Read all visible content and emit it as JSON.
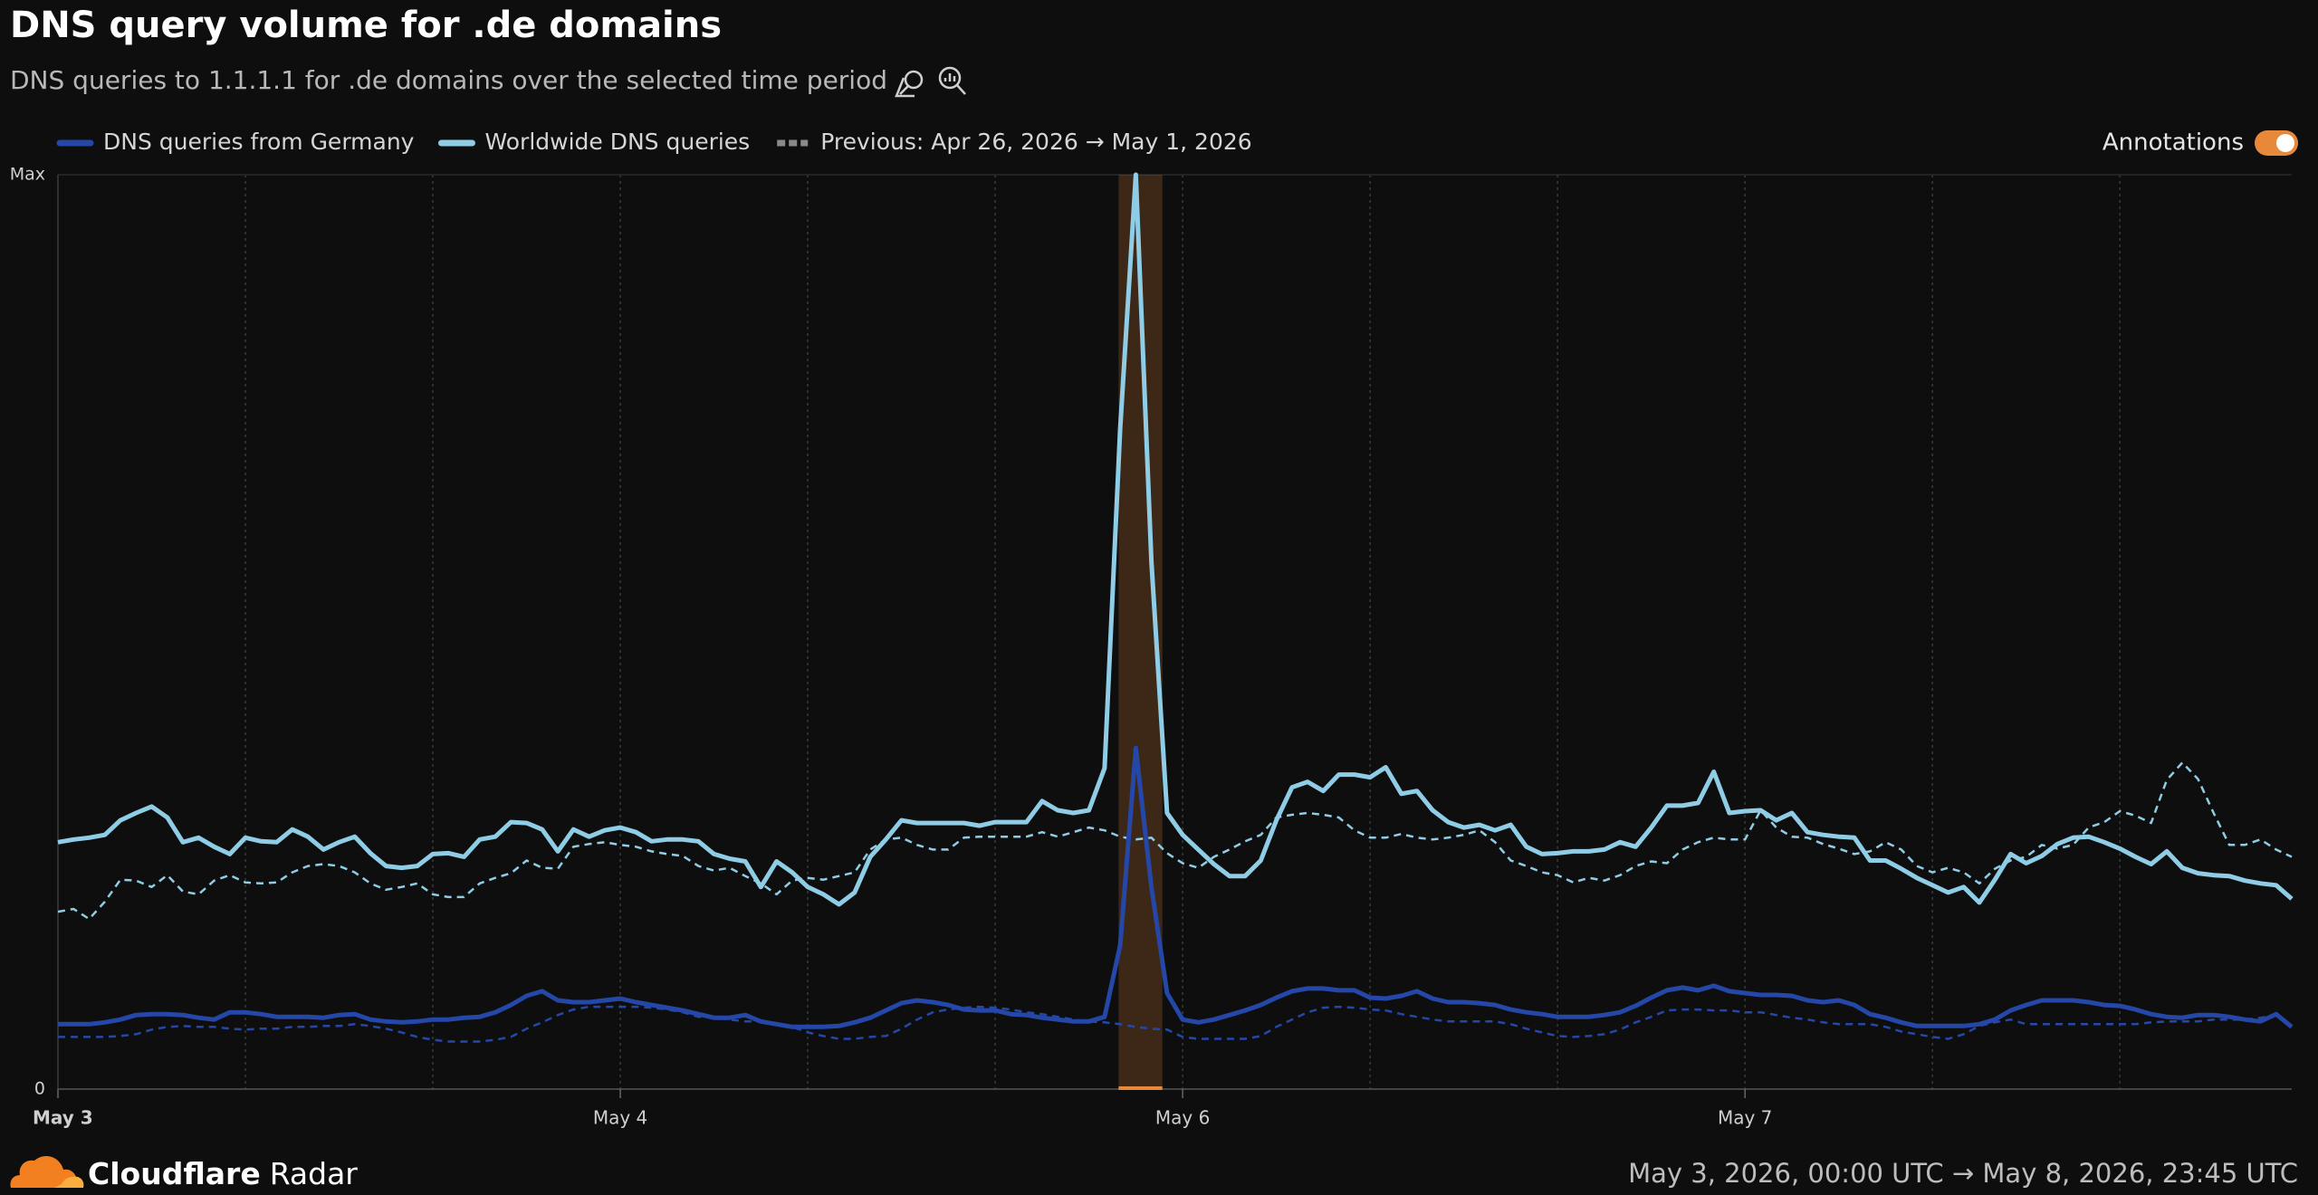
{
  "chart_data": {
    "type": "line",
    "title": "DNS query volume for .de domains",
    "subtitle": "DNS queries to 1.1.1.1 for .de domains over the selected time period",
    "previous_label": "Previous: Apr 26, 2026 → May 1, 2026",
    "toggle_label": "Annotations",
    "toggle_on": true,
    "xlim": [
      0,
      143
    ],
    "xticks": [
      {
        "value": 0,
        "label": "May 3"
      },
      {
        "value": 36,
        "label": "May 4"
      },
      {
        "value": 72,
        "label": "May 6"
      },
      {
        "value": 108,
        "label": "May 7"
      }
    ],
    "x_grid": [
      12,
      24,
      36,
      48,
      60,
      72,
      84,
      96,
      108,
      120,
      132
    ],
    "ylim": [
      0,
      1
    ],
    "yticks": [
      0,
      {
        "value": 1,
        "label": "Max"
      }
    ],
    "annotations": [
      {
        "xlim": [
          67.9,
          70.7
        ],
        "color": "#e8883a"
      }
    ],
    "series": [
      {
        "name": "DNS queries from Germany",
        "color": "#2447a8",
        "values": [
          0.071,
          0.071,
          0.071,
          0.073,
          0.076,
          0.081,
          0.082,
          0.082,
          0.081,
          0.078,
          0.076,
          0.084,
          0.084,
          0.082,
          0.079,
          0.079,
          0.079,
          0.078,
          0.081,
          0.082,
          0.076,
          0.074,
          0.073,
          0.074,
          0.076,
          0.076,
          0.078,
          0.079,
          0.084,
          0.092,
          0.102,
          0.107,
          0.097,
          0.095,
          0.095,
          0.097,
          0.099,
          0.095,
          0.092,
          0.089,
          0.086,
          0.082,
          0.078,
          0.078,
          0.081,
          0.074,
          0.071,
          0.068,
          0.068,
          0.068,
          0.069,
          0.073,
          0.078,
          0.086,
          0.094,
          0.097,
          0.095,
          0.092,
          0.087,
          0.086,
          0.086,
          0.082,
          0.081,
          0.078,
          0.076,
          0.074,
          0.074,
          0.079,
          0.157,
          0.373,
          0.221,
          0.105,
          0.076,
          0.073,
          0.076,
          0.081,
          0.086,
          0.092,
          0.1,
          0.107,
          0.11,
          0.11,
          0.108,
          0.108,
          0.1,
          0.099,
          0.102,
          0.107,
          0.099,
          0.095,
          0.095,
          0.094,
          0.092,
          0.087,
          0.084,
          0.082,
          0.079,
          0.079,
          0.079,
          0.081,
          0.084,
          0.091,
          0.1,
          0.108,
          0.111,
          0.108,
          0.113,
          0.107,
          0.105,
          0.103,
          0.103,
          0.102,
          0.097,
          0.095,
          0.097,
          0.092,
          0.082,
          0.078,
          0.073,
          0.069,
          0.069,
          0.069,
          0.069,
          0.071,
          0.076,
          0.086,
          0.092,
          0.097,
          0.097,
          0.097,
          0.095,
          0.092,
          0.091,
          0.087,
          0.082,
          0.079,
          0.078,
          0.081,
          0.081,
          0.079,
          0.076,
          0.074,
          0.082,
          0.068
        ],
        "previous_values": [
          0.057,
          0.057,
          0.057,
          0.057,
          0.058,
          0.06,
          0.065,
          0.068,
          0.069,
          0.068,
          0.068,
          0.066,
          0.065,
          0.066,
          0.066,
          0.068,
          0.068,
          0.069,
          0.069,
          0.071,
          0.069,
          0.066,
          0.062,
          0.057,
          0.054,
          0.052,
          0.052,
          0.052,
          0.054,
          0.057,
          0.066,
          0.073,
          0.081,
          0.087,
          0.09,
          0.09,
          0.09,
          0.09,
          0.089,
          0.087,
          0.084,
          0.079,
          0.078,
          0.076,
          0.074,
          0.074,
          0.071,
          0.068,
          0.062,
          0.058,
          0.055,
          0.055,
          0.057,
          0.058,
          0.066,
          0.076,
          0.084,
          0.087,
          0.089,
          0.09,
          0.089,
          0.087,
          0.084,
          0.082,
          0.079,
          0.076,
          0.074,
          0.073,
          0.071,
          0.068,
          0.066,
          0.065,
          0.057,
          0.055,
          0.055,
          0.055,
          0.055,
          0.058,
          0.068,
          0.076,
          0.084,
          0.089,
          0.09,
          0.089,
          0.087,
          0.086,
          0.082,
          0.079,
          0.076,
          0.074,
          0.074,
          0.074,
          0.074,
          0.071,
          0.066,
          0.062,
          0.058,
          0.057,
          0.058,
          0.06,
          0.065,
          0.073,
          0.079,
          0.086,
          0.087,
          0.087,
          0.086,
          0.086,
          0.084,
          0.084,
          0.081,
          0.078,
          0.076,
          0.073,
          0.071,
          0.071,
          0.071,
          0.068,
          0.063,
          0.06,
          0.057,
          0.055,
          0.06,
          0.069,
          0.073,
          0.076,
          0.071,
          0.071,
          0.071,
          0.071,
          0.071,
          0.071,
          0.071,
          0.071,
          0.073,
          0.074,
          0.074,
          0.074,
          0.076,
          0.076,
          0.076,
          0.078,
          0.081,
          0.068
        ]
      },
      {
        "name": "Worldwide DNS queries",
        "color": "#8fcde6",
        "values": [
          0.27,
          0.273,
          0.275,
          0.278,
          0.294,
          0.302,
          0.309,
          0.297,
          0.27,
          0.275,
          0.265,
          0.257,
          0.275,
          0.271,
          0.27,
          0.284,
          0.276,
          0.262,
          0.27,
          0.276,
          0.258,
          0.244,
          0.242,
          0.244,
          0.257,
          0.258,
          0.254,
          0.273,
          0.276,
          0.292,
          0.291,
          0.284,
          0.26,
          0.284,
          0.276,
          0.283,
          0.286,
          0.281,
          0.271,
          0.273,
          0.273,
          0.271,
          0.257,
          0.252,
          0.249,
          0.221,
          0.249,
          0.237,
          0.221,
          0.213,
          0.202,
          0.215,
          0.254,
          0.273,
          0.294,
          0.291,
          0.291,
          0.291,
          0.291,
          0.288,
          0.292,
          0.292,
          0.292,
          0.315,
          0.305,
          0.302,
          0.305,
          0.351,
          0.722,
          1,
          0.577,
          0.302,
          0.278,
          0.262,
          0.246,
          0.233,
          0.233,
          0.25,
          0.294,
          0.33,
          0.336,
          0.326,
          0.344,
          0.344,
          0.341,
          0.352,
          0.323,
          0.326,
          0.305,
          0.292,
          0.286,
          0.289,
          0.283,
          0.289,
          0.265,
          0.257,
          0.258,
          0.26,
          0.26,
          0.262,
          0.27,
          0.265,
          0.286,
          0.31,
          0.31,
          0.313,
          0.347,
          0.302,
          0.304,
          0.305,
          0.294,
          0.302,
          0.281,
          0.278,
          0.276,
          0.275,
          0.25,
          0.25,
          0.241,
          0.231,
          0.223,
          0.215,
          0.221,
          0.204,
          0.229,
          0.257,
          0.247,
          0.255,
          0.268,
          0.275,
          0.276,
          0.27,
          0.263,
          0.254,
          0.246,
          0.26,
          0.242,
          0.236,
          0.234,
          0.233,
          0.228,
          0.225,
          0.223,
          0.208
        ],
        "previous_values": [
          0.194,
          0.197,
          0.186,
          0.205,
          0.229,
          0.228,
          0.221,
          0.234,
          0.216,
          0.213,
          0.228,
          0.234,
          0.226,
          0.225,
          0.226,
          0.237,
          0.244,
          0.246,
          0.244,
          0.237,
          0.225,
          0.218,
          0.221,
          0.225,
          0.213,
          0.21,
          0.21,
          0.225,
          0.231,
          0.236,
          0.25,
          0.242,
          0.241,
          0.265,
          0.268,
          0.27,
          0.267,
          0.265,
          0.26,
          0.257,
          0.255,
          0.244,
          0.239,
          0.242,
          0.233,
          0.225,
          0.213,
          0.228,
          0.231,
          0.229,
          0.233,
          0.237,
          0.262,
          0.273,
          0.275,
          0.267,
          0.262,
          0.262,
          0.275,
          0.276,
          0.276,
          0.276,
          0.276,
          0.281,
          0.276,
          0.281,
          0.286,
          0.283,
          0.276,
          0.273,
          0.275,
          0.258,
          0.247,
          0.242,
          0.254,
          0.262,
          0.271,
          0.278,
          0.297,
          0.3,
          0.302,
          0.3,
          0.297,
          0.283,
          0.275,
          0.275,
          0.279,
          0.275,
          0.273,
          0.275,
          0.278,
          0.283,
          0.27,
          0.25,
          0.244,
          0.237,
          0.234,
          0.226,
          0.231,
          0.228,
          0.234,
          0.244,
          0.249,
          0.247,
          0.262,
          0.27,
          0.275,
          0.273,
          0.273,
          0.305,
          0.286,
          0.276,
          0.275,
          0.268,
          0.263,
          0.257,
          0.26,
          0.27,
          0.262,
          0.244,
          0.237,
          0.242,
          0.237,
          0.225,
          0.241,
          0.25,
          0.254,
          0.267,
          0.263,
          0.267,
          0.286,
          0.292,
          0.304,
          0.299,
          0.291,
          0.338,
          0.357,
          0.339,
          0.302,
          0.267,
          0.267,
          0.273,
          0.262,
          0.254
        ]
      }
    ],
    "footer": {
      "brand": "Cloudflare",
      "product": "Radar",
      "range": "May 3, 2026, 00:00 UTC → May 8, 2026, 23:45 UTC"
    }
  }
}
